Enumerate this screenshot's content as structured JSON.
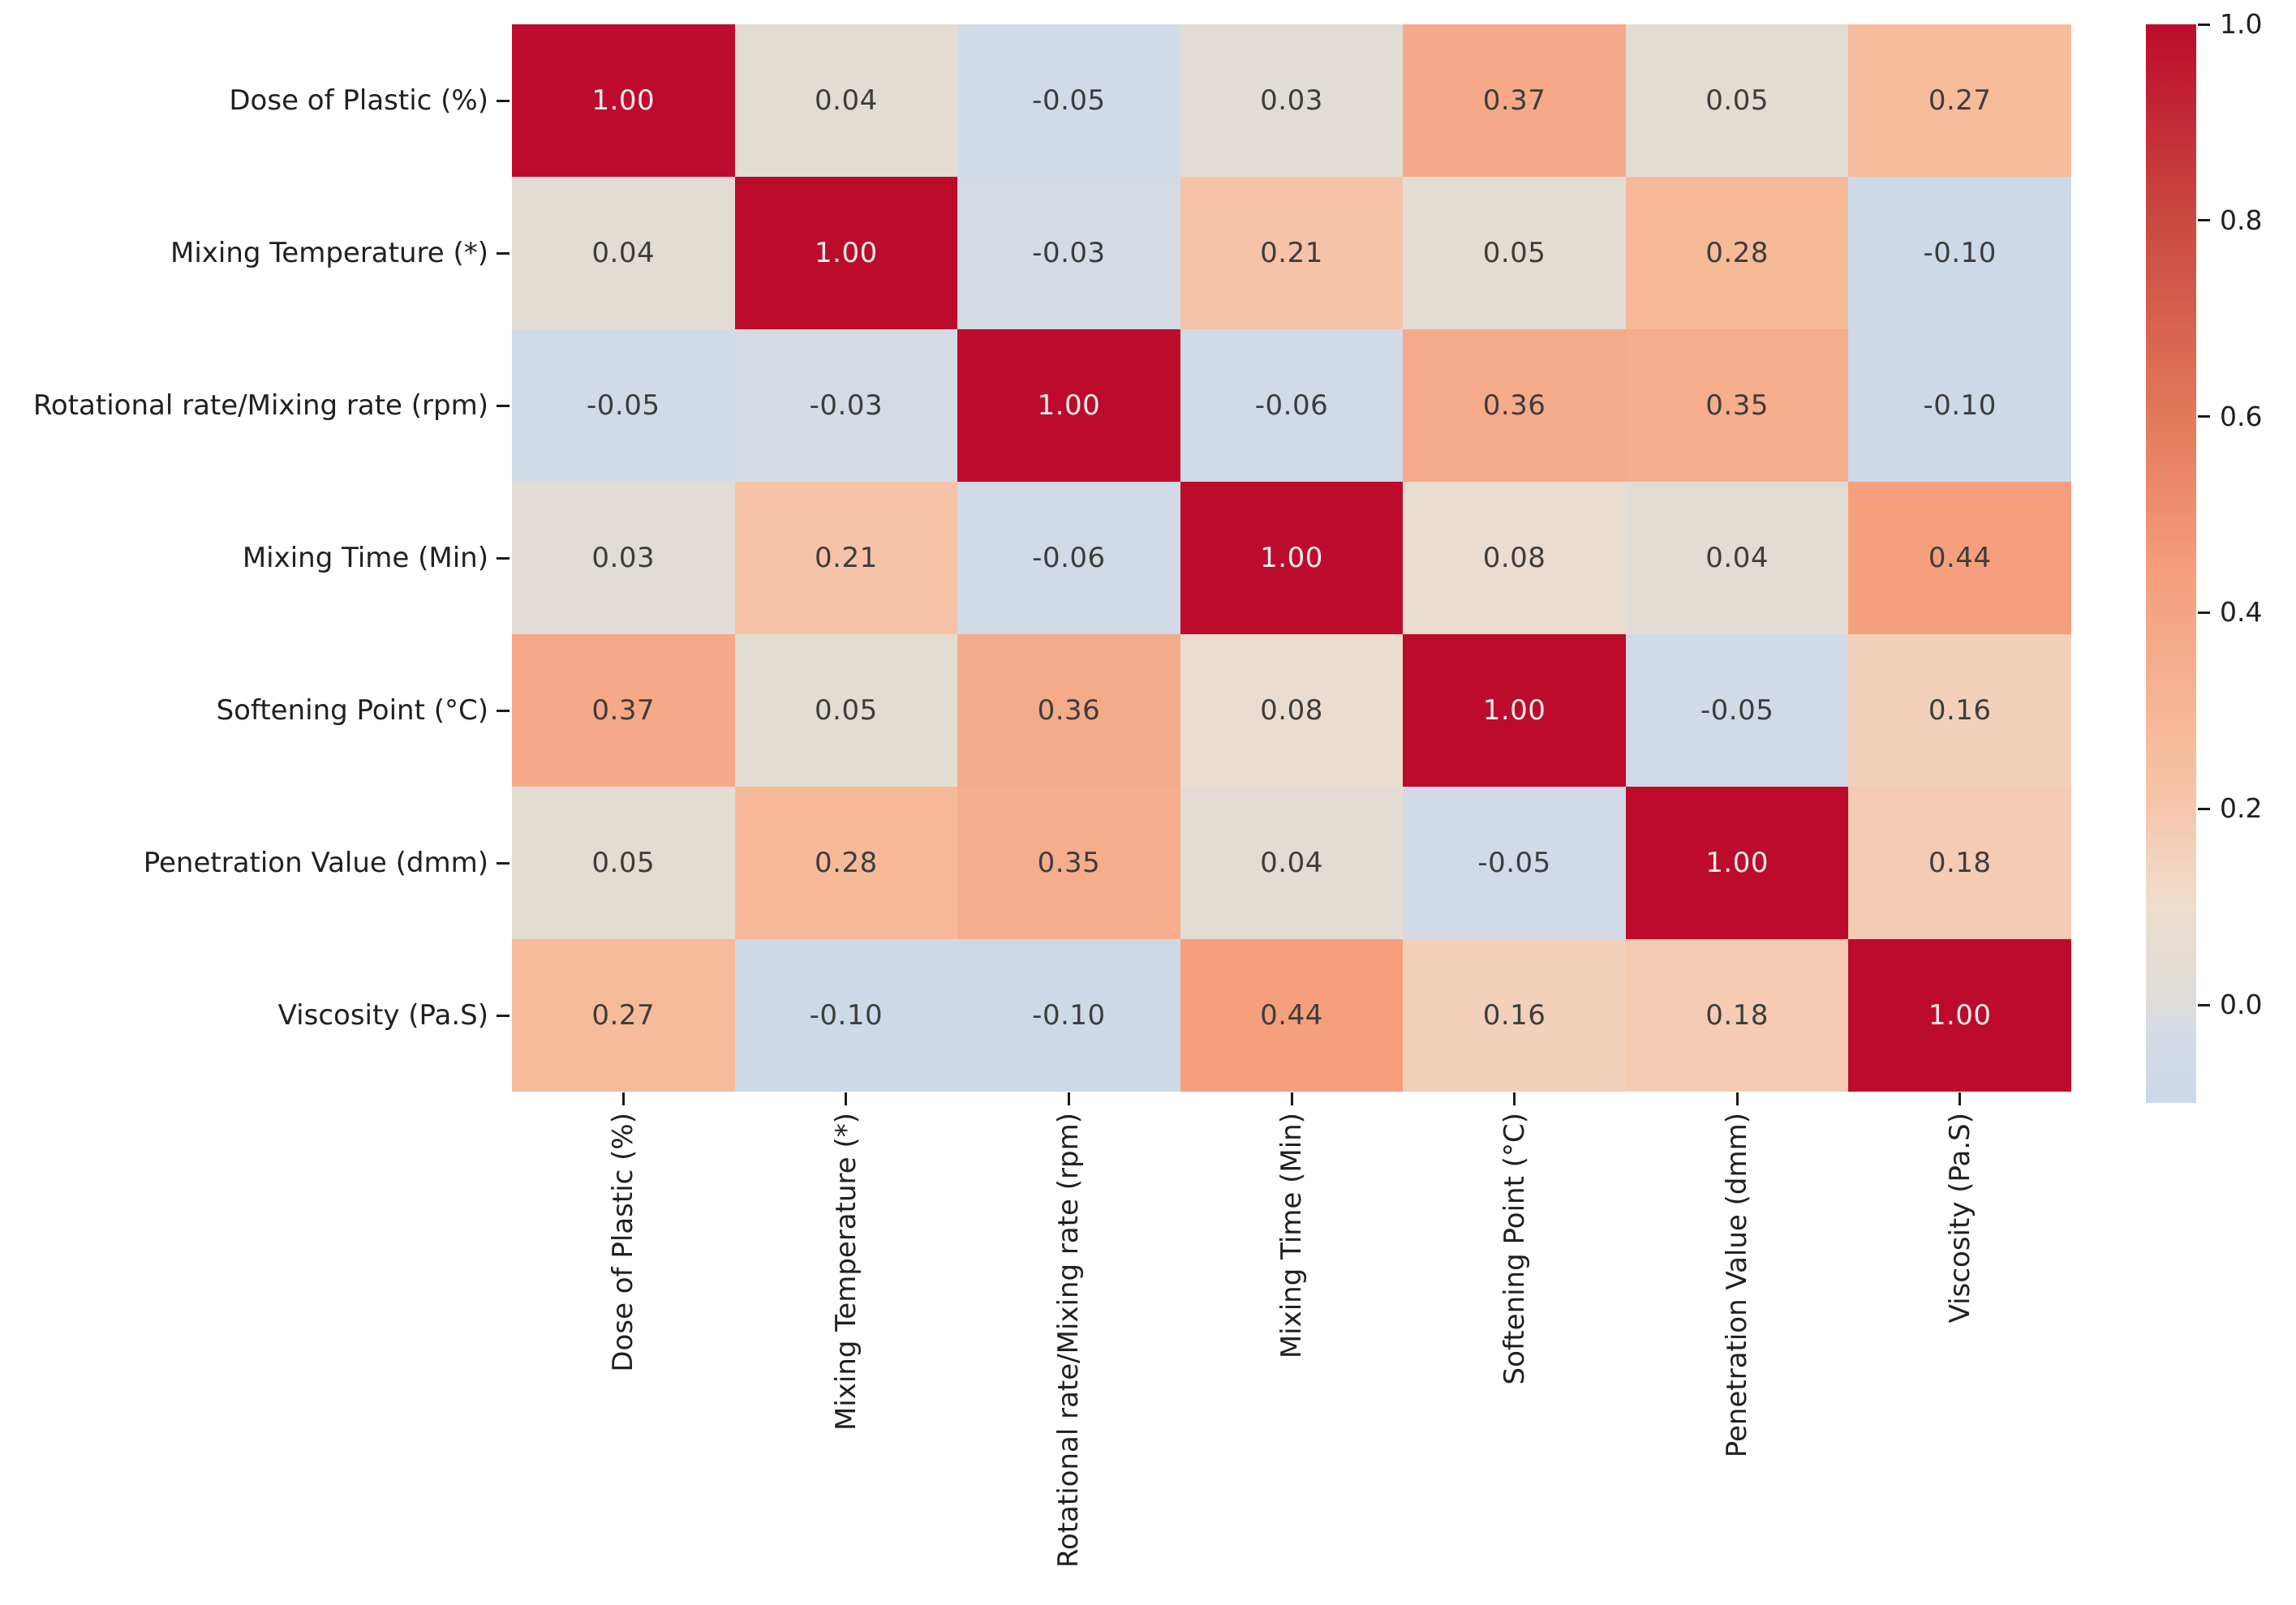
{
  "chart_data": {
    "type": "heatmap",
    "title": "",
    "xlabel": "",
    "ylabel": "",
    "grid": false,
    "legend_position": "colorbar-right",
    "annotation_format": "0.00",
    "labels": [
      "Dose of Plastic (%)",
      "Mixing Temperature (*)",
      "Rotational rate/Mixing rate (rpm)",
      "Mixing Time (Min)",
      "Softening Point (°C)",
      "Penetration Value (dmm)",
      "Viscosity (Pa.S)"
    ],
    "matrix": [
      [
        1.0,
        0.04,
        -0.05,
        0.03,
        0.37,
        0.05,
        0.27
      ],
      [
        0.04,
        1.0,
        -0.03,
        0.21,
        0.05,
        0.28,
        -0.1
      ],
      [
        -0.05,
        -0.03,
        1.0,
        -0.06,
        0.36,
        0.35,
        -0.1
      ],
      [
        0.03,
        0.21,
        -0.06,
        1.0,
        0.08,
        0.04,
        0.44
      ],
      [
        0.37,
        0.05,
        0.36,
        0.08,
        1.0,
        -0.05,
        0.16
      ],
      [
        0.05,
        0.28,
        0.35,
        0.04,
        -0.05,
        1.0,
        0.18
      ],
      [
        0.27,
        -0.1,
        -0.1,
        0.44,
        0.16,
        0.18,
        1.0
      ]
    ],
    "colorbar": {
      "vmin": -0.1,
      "vmax": 1.0,
      "tick_values": [
        1.0,
        0.8,
        0.6,
        0.4,
        0.2,
        0.0
      ],
      "tick_labels": [
        "1.0",
        "0.8",
        "0.6",
        "0.4",
        "0.2",
        "0.0"
      ]
    },
    "colors": {
      "max_red": "#bd0b2c",
      "min_blue": "#cdd8e8",
      "annotation_dark": "#3d3d3d",
      "annotation_light": "#f7eded",
      "axis_text": "#202020",
      "background": "#ffffff"
    },
    "color_anchors": [
      [
        -0.1,
        "#cdd8e8"
      ],
      [
        -0.05,
        "#d3dae7"
      ],
      [
        -0.02,
        "#d6dbe3"
      ],
      [
        0.0,
        "#dedcda"
      ],
      [
        0.03,
        "#e1dcd6"
      ],
      [
        0.05,
        "#e3dcd3"
      ],
      [
        0.1,
        "#eedecd"
      ],
      [
        0.16,
        "#f3d0bb"
      ],
      [
        0.21,
        "#f7c3a8"
      ],
      [
        0.28,
        "#f6ba99"
      ],
      [
        0.37,
        "#f5a988"
      ],
      [
        0.44,
        "#f59f7d"
      ],
      [
        0.6,
        "#e1795a"
      ],
      [
        0.8,
        "#c94a40"
      ],
      [
        1.0,
        "#bd0b2c"
      ]
    ]
  }
}
